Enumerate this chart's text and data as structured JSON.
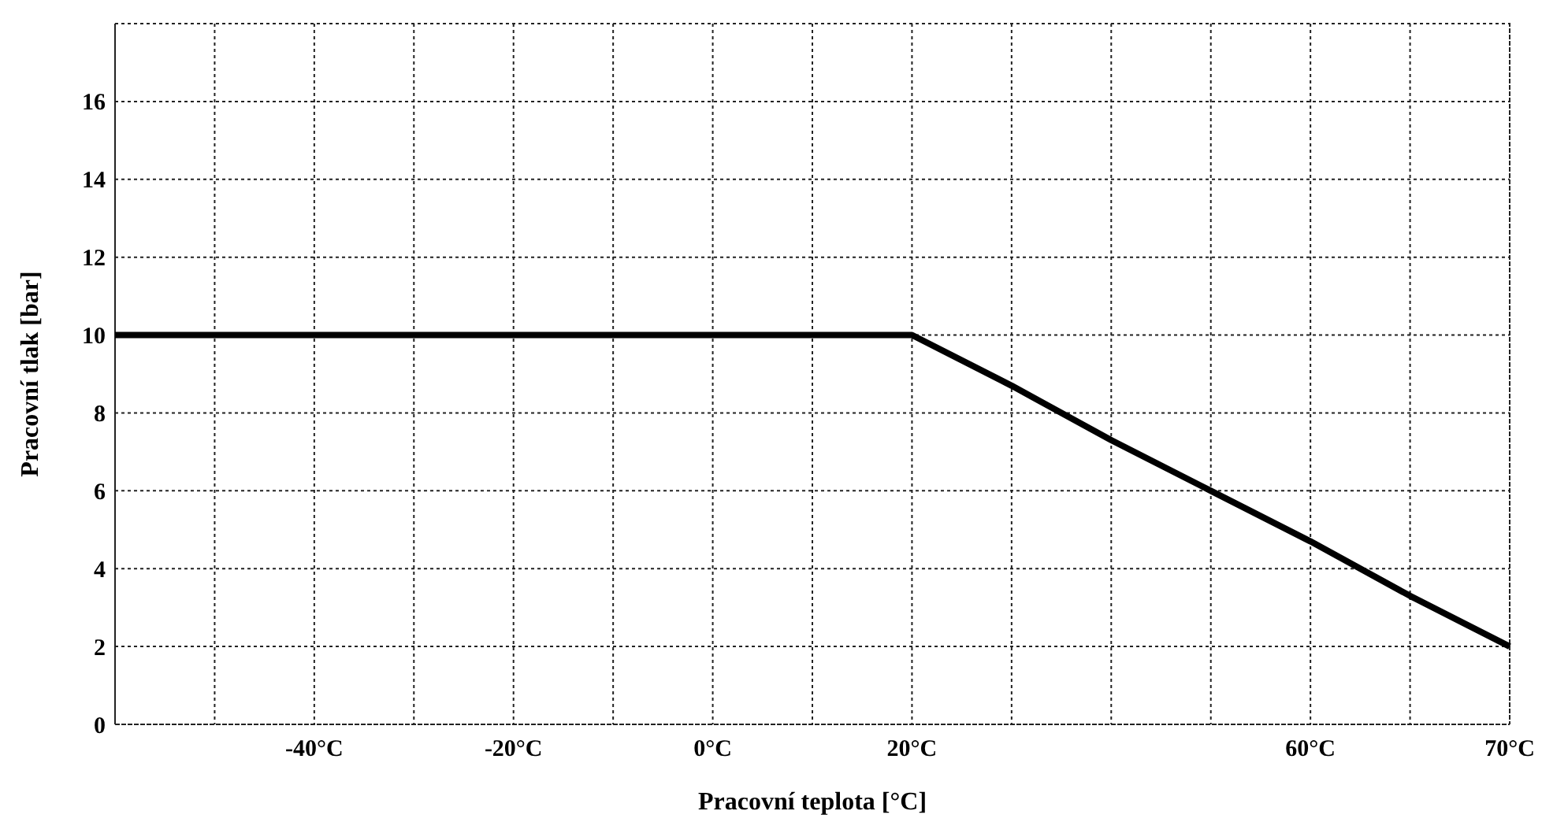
{
  "chart_data": {
    "type": "line",
    "xlabel": "Pracovní teplota [°C]",
    "ylabel": "Pracovní tlak [bar]",
    "categories": [
      null,
      null,
      "-40°C",
      null,
      "-20°C",
      null,
      "0°C",
      null,
      "20°C",
      null,
      null,
      null,
      "60°C",
      null,
      "70°C"
    ],
    "series": [
      {
        "color": "#000000",
        "values": [
          10,
          10,
          10,
          10,
          10,
          10,
          10,
          10,
          10,
          8.7,
          7.3,
          6,
          4.7,
          3.3,
          2
        ]
      }
    ],
    "ylim": [
      0,
      18
    ],
    "yticks": [
      0,
      2,
      4,
      6,
      8,
      10,
      12,
      14,
      16
    ],
    "grid": true,
    "marker": "none",
    "line_style": "solid"
  }
}
